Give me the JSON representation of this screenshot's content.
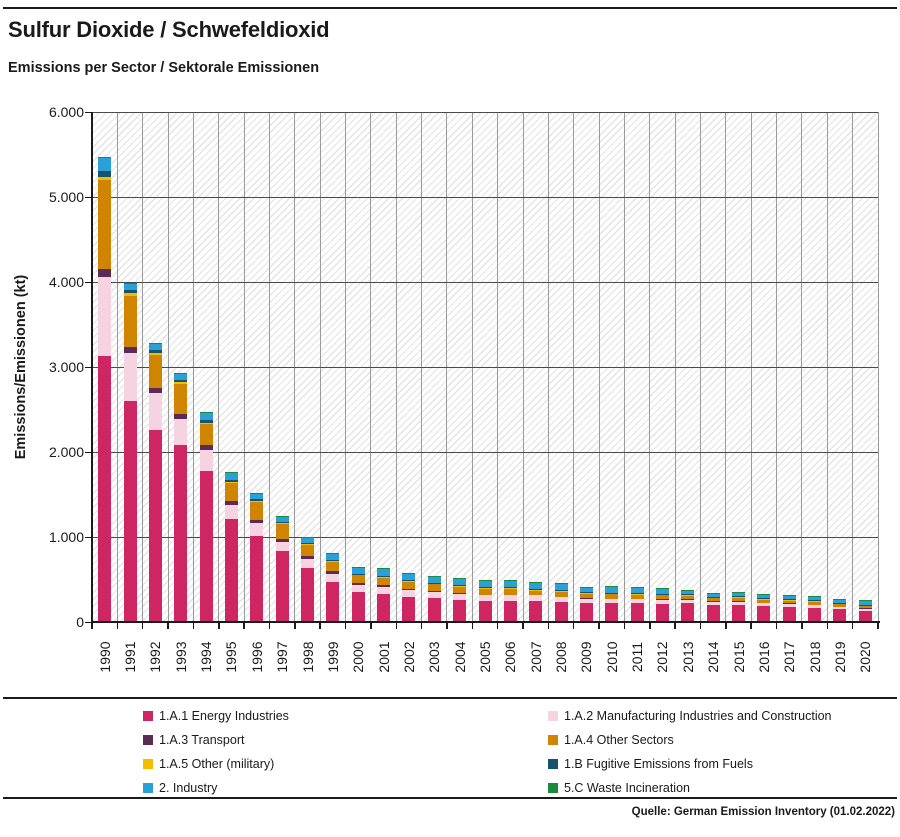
{
  "header": {
    "title": "Sulfur Dioxide / Schwefeldioxid",
    "subtitle": "Emissions per Sector / Sektorale Emissionen"
  },
  "footer": {
    "source": "Quelle: German Emission Inventory (01.02.2022)"
  },
  "colors": {
    "energy": "#CE2563",
    "manufacturing": "#F6D3E1",
    "transport": "#5C2B53",
    "other_sectors": "#D08500",
    "military": "#F4BD00",
    "fugitive": "#15536E",
    "industry": "#2BA0D6",
    "waste": "#1B8A3F",
    "gridline": "#4a4a4a",
    "column_separator": "#9a9a9a",
    "axis": "#1a1a1a"
  },
  "legend": {
    "items": [
      {
        "label": "1.A.1 Energy Industries",
        "color": "#CE2563"
      },
      {
        "label": "1.A.2 Manufacturing Industries and Construction",
        "color": "#F6D3E1"
      },
      {
        "label": "1.A.3 Transport",
        "color": "#5C2B53"
      },
      {
        "label": "1.A.4 Other Sectors",
        "color": "#D08500"
      },
      {
        "label": "1.A.5 Other (military)",
        "color": "#F4BD00"
      },
      {
        "label": "1.B Fugitive Emissions from Fuels",
        "color": "#15536E"
      },
      {
        "label": "2. Industry",
        "color": "#2BA0D6"
      },
      {
        "label": "5.C Waste Incineration",
        "color": "#1B8A3F"
      }
    ]
  },
  "chart_data": {
    "type": "bar",
    "stacked": true,
    "title": "Sulfur Dioxide / Schwefeldioxid",
    "subtitle": "Emissions per Sector / Sektorale Emissionen",
    "xlabel": "",
    "ylabel": "Emissions/Emissionen (kt)",
    "ylim": [
      0,
      6000
    ],
    "yticks": [
      0,
      1000,
      2000,
      3000,
      4000,
      5000,
      6000
    ],
    "ytick_labels": [
      "0",
      "1.000",
      "2.000",
      "3.000",
      "4.000",
      "5.000",
      "6.000"
    ],
    "grid": true,
    "background": "diagonal-hatch",
    "legend_position": "bottom",
    "categories": [
      1990,
      1991,
      1992,
      1993,
      1994,
      1995,
      1996,
      1997,
      1998,
      1999,
      2000,
      2001,
      2002,
      2003,
      2004,
      2005,
      2006,
      2007,
      2008,
      2009,
      2010,
      2011,
      2012,
      2013,
      2014,
      2015,
      2016,
      2017,
      2018,
      2019,
      2020
    ],
    "series": [
      {
        "name": "1.A.1 Energy Industries",
        "color": "#CE2563",
        "values": [
          3130,
          2600,
          2260,
          2080,
          1780,
          1210,
          1010,
          830,
          640,
          470,
          355,
          330,
          295,
          280,
          260,
          250,
          250,
          252,
          235,
          224,
          218,
          222,
          215,
          220,
          200,
          200,
          185,
          180,
          170,
          150,
          130
        ]
      },
      {
        "name": "1.A.2 Manufacturing Industries and Construction",
        "color": "#F6D3E1",
        "values": [
          930,
          560,
          430,
          310,
          245,
          165,
          150,
          110,
          100,
          95,
          85,
          85,
          78,
          73,
          72,
          68,
          68,
          65,
          62,
          52,
          55,
          52,
          50,
          45,
          42,
          42,
          38,
          36,
          32,
          28,
          28
        ]
      },
      {
        "name": "1.A.3 Transport",
        "color": "#5C2B53",
        "values": [
          95,
          70,
          65,
          60,
          55,
          50,
          45,
          40,
          35,
          30,
          22,
          17,
          12,
          9,
          7,
          5,
          4,
          3,
          3,
          2,
          2,
          2,
          2,
          2,
          2,
          2,
          2,
          2,
          2,
          2,
          2
        ]
      },
      {
        "name": "1.A.4 Other Sectors",
        "color": "#D08500",
        "values": [
          1040,
          600,
          390,
          350,
          250,
          210,
          210,
          175,
          130,
          120,
          90,
          95,
          88,
          84,
          80,
          72,
          72,
          52,
          62,
          58,
          56,
          50,
          50,
          45,
          42,
          45,
          40,
          38,
          36,
          34,
          33
        ]
      },
      {
        "name": "1.A.5 Other (military)",
        "color": "#F4BD00",
        "values": [
          45,
          35,
          25,
          20,
          15,
          12,
          10,
          8,
          7,
          6,
          5,
          5,
          4,
          4,
          4,
          3,
          3,
          3,
          3,
          3,
          3,
          3,
          3,
          3,
          3,
          3,
          3,
          3,
          3,
          3,
          3
        ]
      },
      {
        "name": "1.B Fugitive Emissions from Fuels",
        "color": "#15536E",
        "values": [
          65,
          45,
          35,
          30,
          30,
          25,
          22,
          18,
          15,
          13,
          12,
          12,
          12,
          12,
          12,
          12,
          12,
          12,
          12,
          10,
          10,
          10,
          10,
          10,
          10,
          10,
          10,
          10,
          14,
          10,
          10
        ]
      },
      {
        "name": "2. Industry",
        "color": "#2BA0D6",
        "values": [
          160,
          70,
          75,
          70,
          85,
          80,
          65,
          55,
          68,
          73,
          73,
          88,
          82,
          75,
          78,
          82,
          82,
          80,
          76,
          60,
          66,
          62,
          62,
          47,
          40,
          45,
          42,
          40,
          40,
          40,
          40
        ]
      },
      {
        "name": "5.C Waste Incineration",
        "color": "#1B8A3F",
        "values": [
          10,
          5,
          5,
          5,
          5,
          4,
          4,
          4,
          4,
          4,
          4,
          4,
          4,
          4,
          4,
          4,
          4,
          4,
          4,
          4,
          4,
          4,
          4,
          4,
          4,
          4,
          4,
          4,
          4,
          4,
          4
        ]
      }
    ]
  }
}
